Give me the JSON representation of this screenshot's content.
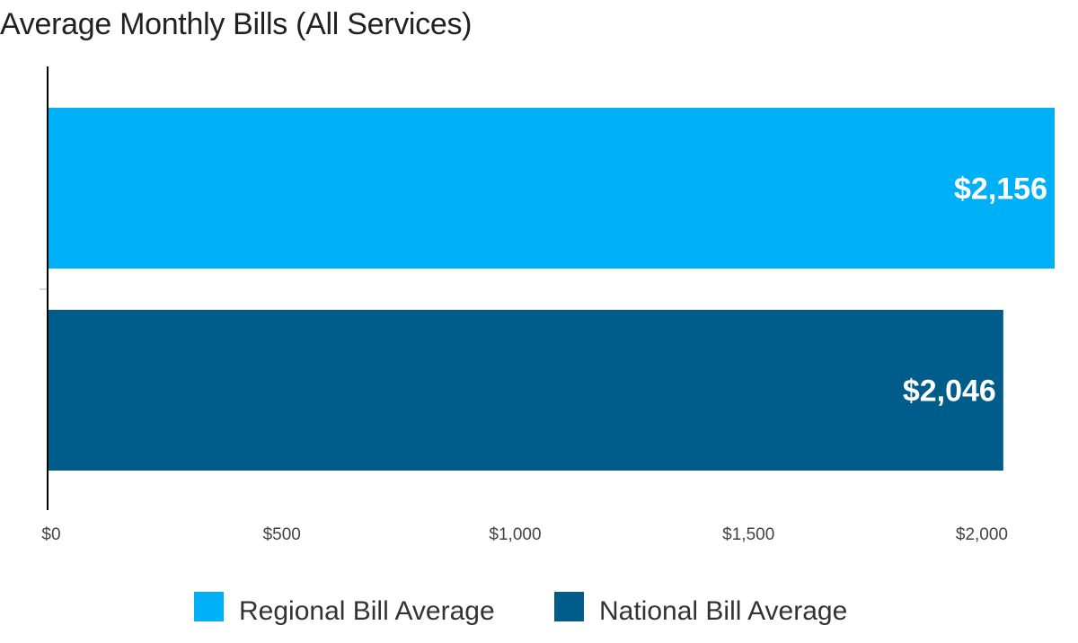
{
  "chart_data": {
    "type": "bar",
    "orientation": "horizontal",
    "title": "Average Monthly Bills (All Services)",
    "series": [
      {
        "name": "Regional Bill Average",
        "value": 2156,
        "label": "$2,156",
        "color": "#00B0F6"
      },
      {
        "name": "National Bill Average",
        "value": 2046,
        "label": "$2,046",
        "color": "#005C8A"
      }
    ],
    "x_ticks": [
      {
        "value": 0,
        "label": "$0"
      },
      {
        "value": 500,
        "label": "$500"
      },
      {
        "value": 1000,
        "label": "$1,000"
      },
      {
        "value": 1500,
        "label": "$1,500"
      },
      {
        "value": 2000,
        "label": "$2,000"
      }
    ],
    "xlim": [
      0,
      2156
    ],
    "grid": false,
    "legend_position": "bottom"
  }
}
